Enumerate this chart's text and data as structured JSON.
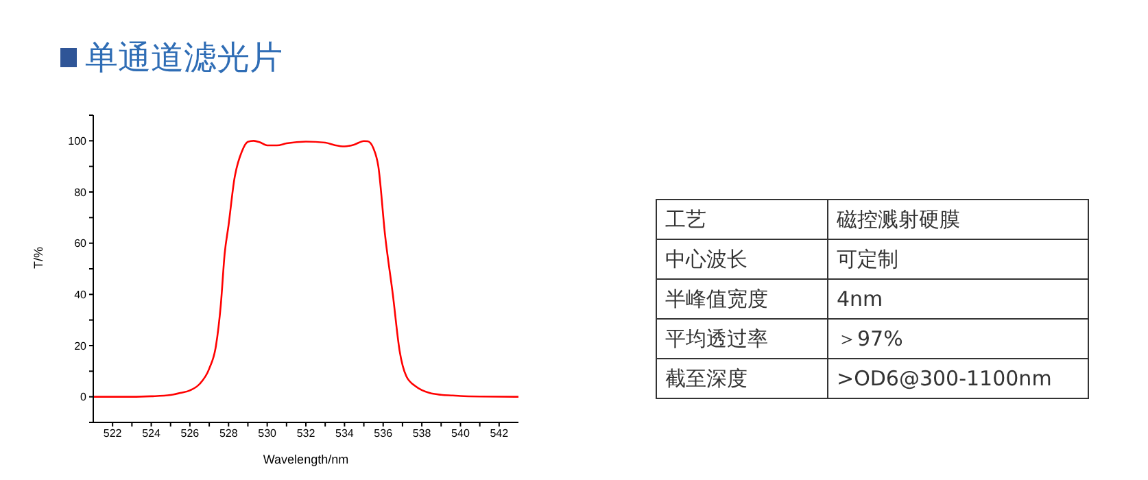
{
  "chart_data": [
    {
      "type": "line",
      "title": "单通道滤光片",
      "xlabel": "Wavelength/nm",
      "ylabel": "T/%",
      "xlim": [
        521,
        543
      ],
      "ylim": [
        -10,
        110
      ],
      "xticks": [
        522,
        {
          "value": 523,
          "label": null
        },
        524,
        {
          "value": 525,
          "label": null
        },
        526,
        {
          "value": 527,
          "label": null
        },
        528,
        {
          "value": 529,
          "label": null
        },
        530,
        {
          "value": 531,
          "label": null
        },
        532,
        {
          "value": 533,
          "label": null
        },
        534,
        {
          "value": 535,
          "label": null
        },
        536,
        {
          "value": 537,
          "label": null
        },
        538,
        {
          "value": 539,
          "label": null
        },
        540,
        {
          "value": 541,
          "label": null
        },
        542
      ],
      "yticks": [
        {
          "value": -10,
          "label": null
        },
        0,
        {
          "value": 10,
          "label": null
        },
        20,
        {
          "value": 30,
          "label": null
        },
        40,
        {
          "value": 50,
          "label": null
        },
        60,
        {
          "value": 70,
          "label": null
        },
        80,
        {
          "value": 90,
          "label": null
        },
        100,
        {
          "value": 110,
          "label": null
        }
      ],
      "grid": false,
      "legend": false,
      "marker": "none",
      "line_style": "solid",
      "x": [
        521,
        523,
        524,
        525,
        525.5,
        526,
        526.5,
        527,
        527.35,
        527.6,
        527.8,
        528,
        528.3,
        528.7,
        529,
        529.3,
        529.6,
        530,
        530.5,
        531,
        532,
        533,
        533.5,
        534,
        534.5,
        535,
        535.2,
        535.5,
        535.75,
        536.1,
        536.5,
        536.85,
        537.2,
        537.7,
        538.4,
        539,
        539.6,
        540,
        541,
        543
      ],
      "series": [
        {
          "color": "#ff0000",
          "values": [
            0,
            0,
            0.2,
            0.7,
            1.5,
            2.5,
            5,
            11,
            20,
            36,
            56,
            67,
            85,
            96,
            99.6,
            100,
            99.5,
            98.2,
            98.2,
            99,
            99.7,
            99.3,
            98.3,
            97.8,
            98.5,
            99.9,
            99.8,
            97,
            90,
            63,
            40,
            18,
            8,
            4,
            1.5,
            0.8,
            0.5,
            0.3,
            0.1,
            0
          ]
        }
      ]
    },
    {
      "type": "other",
      "annotations": [
        "工艺",
        "磁控溅射硬膜",
        "中心波长",
        "可定制",
        "半峰值宽度",
        "4nm",
        "平均透过率",
        "＞97%",
        "截至深度",
        ">OD6@300-1100nm"
      ]
    }
  ]
}
